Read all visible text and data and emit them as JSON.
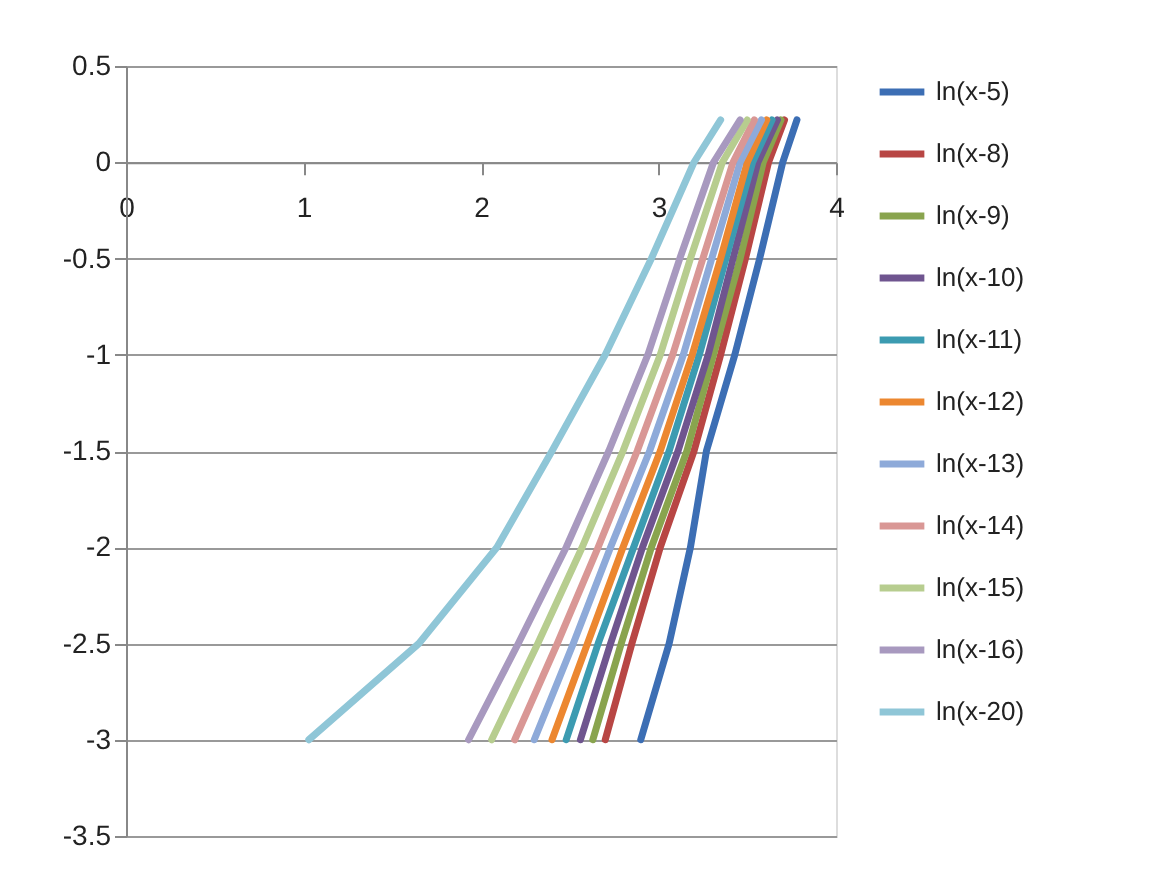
{
  "chart_data": {
    "type": "line",
    "xlim": [
      0,
      4
    ],
    "xticks": [
      0,
      1,
      2,
      3,
      4
    ],
    "ylim": [
      -3.5,
      0.5
    ],
    "yticks": [
      -3.5,
      -3,
      -2.5,
      -2,
      -1.5,
      -1,
      -0.5,
      0,
      0.5
    ],
    "grid": "y",
    "legend": "right",
    "series": [
      {
        "name": "ln(x-5)",
        "color": "#3c6eb4",
        "x": [
          2.9,
          3.06,
          3.18,
          3.27,
          3.43,
          3.57,
          3.7,
          3.78
        ],
        "values": [
          -3,
          -2.5,
          -2,
          -1.5,
          -1,
          -0.5,
          0,
          0.22
        ]
      },
      {
        "name": "ln(x-8)",
        "color": "#b84644",
        "x": [
          2.7,
          2.85,
          3.01,
          3.2,
          3.35,
          3.49,
          3.62,
          3.71
        ],
        "values": [
          -3,
          -2.5,
          -2,
          -1.5,
          -1,
          -0.5,
          0,
          0.22
        ]
      },
      {
        "name": "ln(x-9)",
        "color": "#89a44e",
        "x": [
          2.63,
          2.79,
          2.96,
          3.16,
          3.31,
          3.46,
          3.59,
          3.69
        ],
        "values": [
          -3,
          -2.5,
          -2,
          -1.5,
          -1,
          -0.5,
          0,
          0.22
        ]
      },
      {
        "name": "ln(x-10)",
        "color": "#6f558f",
        "x": [
          2.56,
          2.73,
          2.91,
          3.11,
          3.28,
          3.42,
          3.56,
          3.67
        ],
        "values": [
          -3,
          -2.5,
          -2,
          -1.5,
          -1,
          -0.5,
          0,
          0.22
        ]
      },
      {
        "name": "ln(x-11)",
        "color": "#3c9bb1",
        "x": [
          2.48,
          2.66,
          2.86,
          3.06,
          3.23,
          3.38,
          3.53,
          3.64
        ],
        "values": [
          -3,
          -2.5,
          -2,
          -1.5,
          -1,
          -0.5,
          0,
          0.22
        ]
      },
      {
        "name": "ln(x-12)",
        "color": "#ec8730",
        "x": [
          2.4,
          2.6,
          2.8,
          3.01,
          3.19,
          3.35,
          3.5,
          3.61
        ],
        "values": [
          -3,
          -2.5,
          -2,
          -1.5,
          -1,
          -0.5,
          0,
          0.22
        ]
      },
      {
        "name": "ln(x-13)",
        "color": "#8eaad9",
        "x": [
          2.3,
          2.52,
          2.73,
          2.95,
          3.14,
          3.3,
          3.46,
          3.58
        ],
        "values": [
          -3,
          -2.5,
          -2,
          -1.5,
          -1,
          -0.5,
          0,
          0.22
        ]
      },
      {
        "name": "ln(x-14)",
        "color": "#d99795",
        "x": [
          2.19,
          2.43,
          2.66,
          2.88,
          3.08,
          3.25,
          3.42,
          3.54
        ],
        "values": [
          -3,
          -2.5,
          -2,
          -1.5,
          -1,
          -0.5,
          0,
          0.22
        ]
      },
      {
        "name": "ln(x-15)",
        "color": "#b7cd8f",
        "x": [
          2.06,
          2.32,
          2.57,
          2.8,
          3.01,
          3.18,
          3.36,
          3.5
        ],
        "values": [
          -3,
          -2.5,
          -2,
          -1.5,
          -1,
          -0.5,
          0,
          0.22
        ]
      },
      {
        "name": "ln(x-16)",
        "color": "#a899bf",
        "x": [
          1.93,
          2.21,
          2.48,
          2.72,
          2.94,
          3.12,
          3.31,
          3.46
        ],
        "values": [
          -3,
          -2.5,
          -2,
          -1.5,
          -1,
          -0.5,
          0,
          0.22
        ]
      },
      {
        "name": "ln(x-20)",
        "color": "#8fc6d7",
        "x": [
          1.03,
          1.65,
          2.09,
          2.4,
          2.7,
          2.96,
          3.2,
          3.35
        ],
        "values": [
          -3,
          -2.5,
          -2,
          -1.5,
          -1,
          -0.5,
          0,
          0.22
        ]
      }
    ]
  }
}
